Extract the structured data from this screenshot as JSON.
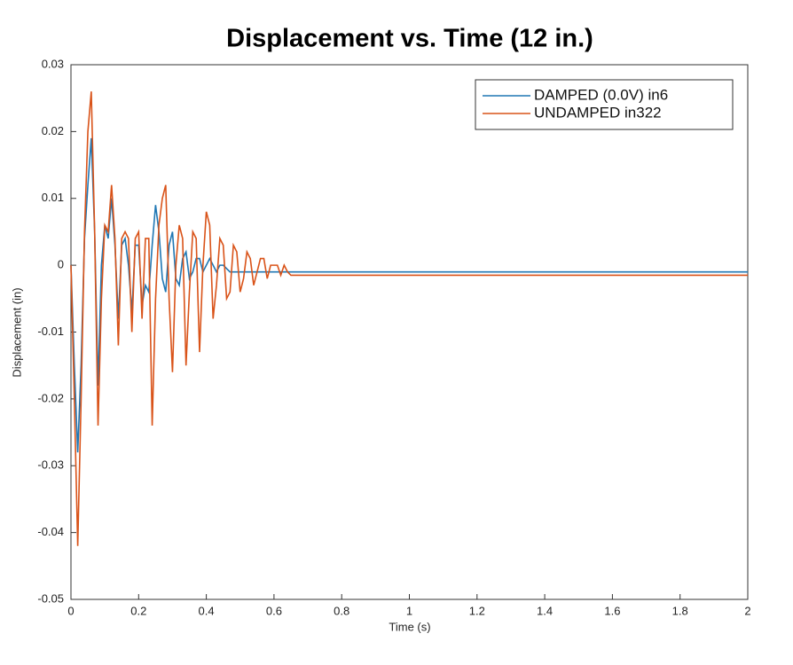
{
  "chart_data": {
    "type": "line",
    "title": "Displacement vs. Time (12 in.)",
    "x_label": "Time (s)",
    "y_label": "Displacement (in)",
    "x": [
      0,
      0.01,
      0.02,
      0.03,
      0.04,
      0.05,
      0.06,
      0.07,
      0.08,
      0.09,
      0.1,
      0.11,
      0.12,
      0.13,
      0.14,
      0.15,
      0.16,
      0.17,
      0.18,
      0.19,
      0.2,
      0.21,
      0.22,
      0.23,
      0.24,
      0.25,
      0.26,
      0.27,
      0.28,
      0.29,
      0.3,
      0.31,
      0.32,
      0.33,
      0.34,
      0.35,
      0.36,
      0.37,
      0.38,
      0.39,
      0.4,
      0.41,
      0.42,
      0.43,
      0.44,
      0.45,
      0.46,
      0.47,
      0.48,
      0.49,
      0.5,
      0.51,
      0.52,
      0.53,
      0.54,
      0.55,
      0.56,
      0.57,
      0.58,
      0.59,
      0.6,
      0.61,
      0.62,
      0.63,
      0.64,
      0.65,
      0.66,
      0.67,
      0.68,
      0.69,
      0.7,
      0.8,
      1,
      1.2,
      1.4,
      1.6,
      1.8,
      2
    ],
    "series": [
      {
        "name": "DAMPED (0.0V) in6",
        "color": "#1f77b4",
        "values": [
          0,
          -0.015,
          -0.028,
          -0.015,
          0.004,
          0.012,
          0.019,
          0.005,
          -0.018,
          0,
          0.006,
          0.004,
          0.01,
          0.003,
          -0.008,
          0.003,
          0.004,
          0,
          -0.007,
          0.003,
          0.003,
          -0.006,
          -0.003,
          -0.004,
          0.003,
          0.009,
          0.005,
          -0.002,
          -0.004,
          0.003,
          0.005,
          -0.002,
          -0.003,
          0.001,
          0.002,
          -0.002,
          -0.001,
          0.001,
          0.001,
          -0.001,
          0,
          0.001,
          0,
          -0.001,
          0,
          0,
          -0.0005,
          -0.001,
          -0.001,
          -0.001,
          -0.001,
          -0.001,
          -0.001,
          -0.001,
          -0.001,
          -0.001,
          -0.001,
          -0.001,
          -0.001,
          -0.001,
          -0.001,
          -0.001,
          -0.001,
          -0.001,
          -0.001,
          -0.001,
          -0.001,
          -0.001,
          -0.001,
          -0.001,
          -0.001,
          -0.001,
          -0.001,
          -0.001,
          -0.001,
          -0.001,
          -0.001,
          -0.001
        ]
      },
      {
        "name": "UNDAMPED in322",
        "color": "#d95319",
        "values": [
          0,
          -0.02,
          -0.042,
          -0.02,
          0.005,
          0.02,
          0.026,
          0.005,
          -0.024,
          -0.005,
          0.006,
          0.005,
          0.012,
          0.004,
          -0.012,
          0.004,
          0.005,
          0.004,
          -0.01,
          0.004,
          0.005,
          -0.008,
          0.004,
          0.004,
          -0.024,
          -0.005,
          0.006,
          0.01,
          0.012,
          -0.005,
          -0.016,
          0,
          0.006,
          0.004,
          -0.015,
          -0.004,
          0.005,
          0.004,
          -0.013,
          0,
          0.008,
          0.006,
          -0.008,
          -0.003,
          0.004,
          0.003,
          -0.005,
          -0.004,
          0.003,
          0.002,
          -0.004,
          -0.002,
          0.002,
          0.001,
          -0.003,
          -0.001,
          0.001,
          0.001,
          -0.002,
          0,
          0,
          0,
          -0.0015,
          0,
          -0.001,
          -0.0015,
          -0.0015,
          -0.0015,
          -0.0015,
          -0.0015,
          -0.0015,
          -0.0015,
          -0.0015,
          -0.0015,
          -0.0015,
          -0.0015,
          -0.0015,
          -0.0015
        ]
      }
    ],
    "xlim": [
      0,
      2
    ],
    "xticks": [
      0,
      0.2,
      0.4,
      0.6,
      0.8,
      1,
      1.2,
      1.4,
      1.6,
      1.8,
      2
    ],
    "ylim": [
      -0.05,
      0.03
    ],
    "yticks": [
      -0.05,
      -0.04,
      -0.03,
      -0.02,
      -0.01,
      0,
      0.01,
      0.02,
      0.03
    ],
    "legend": "upper right",
    "grid": false
  }
}
